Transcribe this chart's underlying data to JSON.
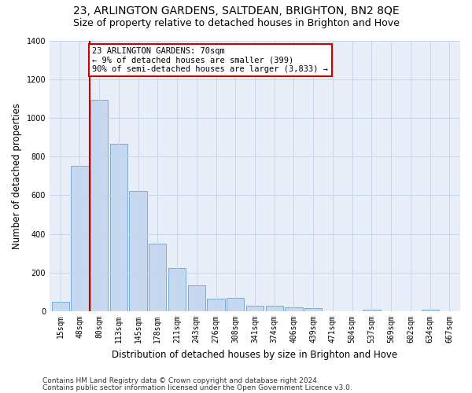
{
  "title": "23, ARLINGTON GARDENS, SALTDEAN, BRIGHTON, BN2 8QE",
  "subtitle": "Size of property relative to detached houses in Brighton and Hove",
  "xlabel": "Distribution of detached houses by size in Brighton and Hove",
  "ylabel": "Number of detached properties",
  "footer1": "Contains HM Land Registry data © Crown copyright and database right 2024.",
  "footer2": "Contains public sector information licensed under the Open Government Licence v3.0.",
  "bar_labels": [
    "15sqm",
    "48sqm",
    "80sqm",
    "113sqm",
    "145sqm",
    "178sqm",
    "211sqm",
    "243sqm",
    "276sqm",
    "308sqm",
    "341sqm",
    "374sqm",
    "406sqm",
    "439sqm",
    "471sqm",
    "504sqm",
    "537sqm",
    "569sqm",
    "602sqm",
    "634sqm",
    "667sqm"
  ],
  "bar_values": [
    50,
    750,
    1095,
    865,
    620,
    350,
    225,
    135,
    65,
    70,
    30,
    30,
    20,
    15,
    0,
    0,
    10,
    0,
    0,
    10,
    0
  ],
  "bar_color": "#c5d8ef",
  "bar_edge_color": "#7aadd4",
  "annotation_text_line1": "23 ARLINGTON GARDENS: 70sqm",
  "annotation_text_line2": "← 9% of detached houses are smaller (399)",
  "annotation_text_line3": "90% of semi-detached houses are larger (3,833) →",
  "annotation_box_color": "#ffffff",
  "annotation_box_edgecolor": "#cc0000",
  "highlight_line_color": "#cc0000",
  "ylim": [
    0,
    1400
  ],
  "yticks": [
    0,
    200,
    400,
    600,
    800,
    1000,
    1200,
    1400
  ],
  "grid_color": "#c8d4e8",
  "background_color": "#e8eef8",
  "title_fontsize": 10,
  "subtitle_fontsize": 9,
  "xlabel_fontsize": 8.5,
  "ylabel_fontsize": 8.5,
  "tick_fontsize": 7,
  "footer_fontsize": 6.5,
  "annotation_fontsize": 7.5
}
